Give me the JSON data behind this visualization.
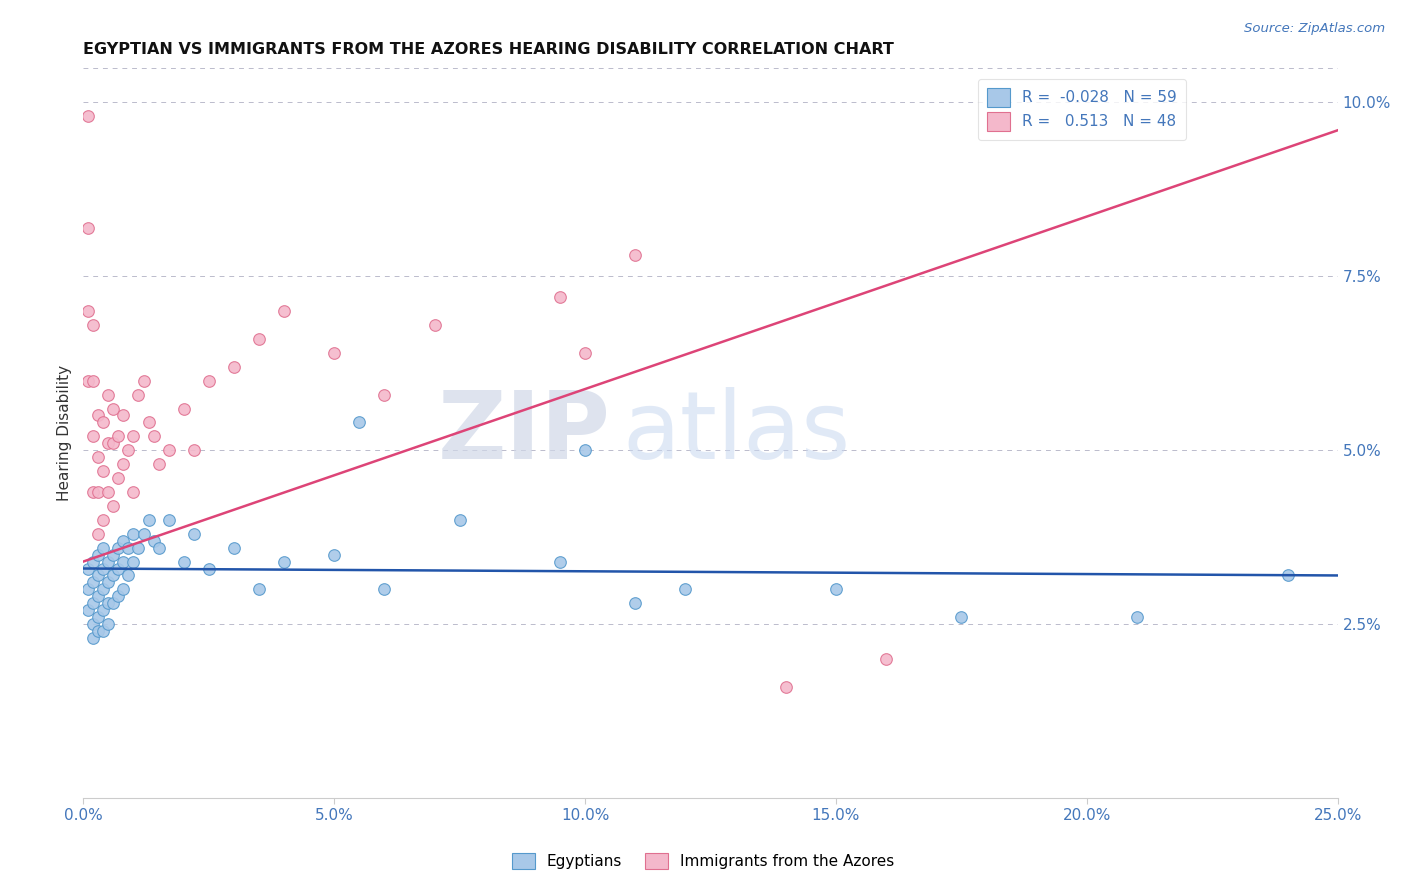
{
  "title": "EGYPTIAN VS IMMIGRANTS FROM THE AZORES HEARING DISABILITY CORRELATION CHART",
  "source": "Source: ZipAtlas.com",
  "xlabel_ticks": [
    "0.0%",
    "5.0%",
    "10.0%",
    "15.0%",
    "20.0%",
    "25.0%"
  ],
  "xlabel_vals": [
    0.0,
    0.05,
    0.1,
    0.15,
    0.2,
    0.25
  ],
  "ylabel_ticks": [
    "2.5%",
    "5.0%",
    "7.5%",
    "10.0%"
  ],
  "ylabel_vals": [
    0.025,
    0.05,
    0.075,
    0.1
  ],
  "ylabel_label": "Hearing Disability",
  "legend_labels": [
    "Egyptians",
    "Immigrants from the Azores"
  ],
  "R_blue": -0.028,
  "N_blue": 59,
  "R_pink": 0.513,
  "N_pink": 48,
  "blue_color": "#a8c8e8",
  "pink_color": "#f4b8cb",
  "blue_edge_color": "#5599cc",
  "pink_edge_color": "#e07090",
  "blue_line_color": "#2255aa",
  "pink_line_color": "#dd4477",
  "watermark_zip": "ZIP",
  "watermark_atlas": "atlas",
  "blue_scatter_x": [
    0.001,
    0.001,
    0.001,
    0.002,
    0.002,
    0.002,
    0.002,
    0.002,
    0.003,
    0.003,
    0.003,
    0.003,
    0.003,
    0.004,
    0.004,
    0.004,
    0.004,
    0.004,
    0.005,
    0.005,
    0.005,
    0.005,
    0.006,
    0.006,
    0.006,
    0.007,
    0.007,
    0.007,
    0.008,
    0.008,
    0.008,
    0.009,
    0.009,
    0.01,
    0.01,
    0.011,
    0.012,
    0.013,
    0.014,
    0.015,
    0.017,
    0.02,
    0.022,
    0.025,
    0.03,
    0.035,
    0.04,
    0.05,
    0.055,
    0.06,
    0.075,
    0.095,
    0.1,
    0.11,
    0.12,
    0.15,
    0.175,
    0.21,
    0.24
  ],
  "blue_scatter_y": [
    0.033,
    0.03,
    0.027,
    0.034,
    0.031,
    0.028,
    0.025,
    0.023,
    0.035,
    0.032,
    0.029,
    0.026,
    0.024,
    0.036,
    0.033,
    0.03,
    0.027,
    0.024,
    0.034,
    0.031,
    0.028,
    0.025,
    0.035,
    0.032,
    0.028,
    0.036,
    0.033,
    0.029,
    0.037,
    0.034,
    0.03,
    0.036,
    0.032,
    0.038,
    0.034,
    0.036,
    0.038,
    0.04,
    0.037,
    0.036,
    0.04,
    0.034,
    0.038,
    0.033,
    0.036,
    0.03,
    0.034,
    0.035,
    0.054,
    0.03,
    0.04,
    0.034,
    0.05,
    0.028,
    0.03,
    0.03,
    0.026,
    0.026,
    0.032
  ],
  "pink_scatter_x": [
    0.001,
    0.001,
    0.001,
    0.001,
    0.002,
    0.002,
    0.002,
    0.002,
    0.003,
    0.003,
    0.003,
    0.003,
    0.004,
    0.004,
    0.004,
    0.005,
    0.005,
    0.005,
    0.006,
    0.006,
    0.006,
    0.007,
    0.007,
    0.008,
    0.008,
    0.009,
    0.01,
    0.01,
    0.011,
    0.012,
    0.013,
    0.014,
    0.015,
    0.017,
    0.02,
    0.022,
    0.025,
    0.03,
    0.035,
    0.04,
    0.05,
    0.06,
    0.07,
    0.095,
    0.1,
    0.11,
    0.14,
    0.16
  ],
  "pink_scatter_y": [
    0.098,
    0.082,
    0.07,
    0.06,
    0.068,
    0.06,
    0.052,
    0.044,
    0.055,
    0.049,
    0.044,
    0.038,
    0.054,
    0.047,
    0.04,
    0.058,
    0.051,
    0.044,
    0.056,
    0.051,
    0.042,
    0.052,
    0.046,
    0.055,
    0.048,
    0.05,
    0.052,
    0.044,
    0.058,
    0.06,
    0.054,
    0.052,
    0.048,
    0.05,
    0.056,
    0.05,
    0.06,
    0.062,
    0.066,
    0.07,
    0.064,
    0.058,
    0.068,
    0.072,
    0.064,
    0.078,
    0.016,
    0.02
  ],
  "xmin": 0.0,
  "xmax": 0.25,
  "ymin": 0.0,
  "ymax": 0.105,
  "blue_trend_start_y": 0.033,
  "blue_trend_end_y": 0.032,
  "pink_trend_start_y": 0.034,
  "pink_trend_end_y": 0.096,
  "figsize": [
    14.06,
    8.92
  ],
  "dpi": 100
}
